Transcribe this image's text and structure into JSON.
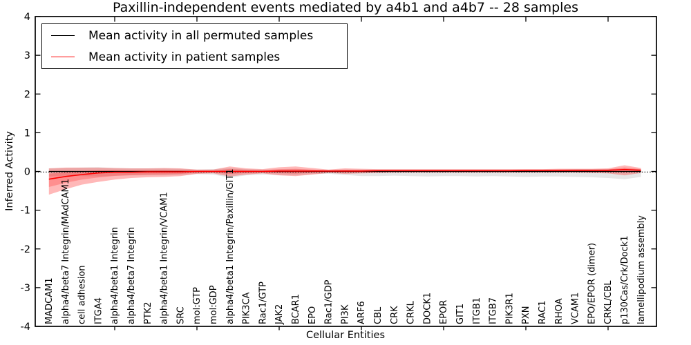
{
  "chart_data": {
    "type": "line",
    "title": "Paxillin-independent events mediated by a4b1 and a4b7 -- 28 samples",
    "xlabel": "Cellular Entities",
    "ylabel": "Inferred Activity",
    "ylim": [
      -4,
      4
    ],
    "yticks": [
      4,
      3,
      2,
      1,
      0,
      -1,
      -2,
      -3,
      -4
    ],
    "x_major_tick_positions": [
      5,
      10,
      15,
      20,
      25,
      30,
      35
    ],
    "grid": false,
    "legend_position": "upper left",
    "zero_reference_line": {
      "value": 0,
      "style": "dotted",
      "color": "#000000"
    },
    "entities": [
      "MADCAM1",
      "alpha4/beta7 Integrin/MAdCAM1",
      "cell adhesion",
      "ITGA4",
      "alpha4/beta1 Integrin",
      "alpha4/beta7 Integrin",
      "PTK2",
      "alpha4/beta1 Integrin/VCAM1",
      "SRC",
      "mol:GTP",
      "mol:GDP",
      "alpha4/beta1 Integrin/Paxillin/GIT1",
      "PIK3CA",
      "Rac1/GTP",
      "JAK2",
      "BCAR1",
      "EPO",
      "Rac1/GDP",
      "PI3K",
      "ARF6",
      "CBL",
      "CRK",
      "CRKL",
      "DOCK1",
      "EPOR",
      "GIT1",
      "ITGB1",
      "ITGB7",
      "PIK3R1",
      "PXN",
      "RAC1",
      "RHOA",
      "VCAM1",
      "EPO/EPOR (dimer)",
      "CRKL/CBL",
      "p130Cas/Crk/Dock1",
      "lamellipodium assembly"
    ],
    "series": [
      {
        "name": "Mean activity in all permuted samples",
        "color": "#000000",
        "values": [
          0,
          0,
          0,
          0,
          0,
          0,
          0,
          0,
          0,
          0,
          0,
          0,
          0,
          0,
          0,
          0,
          0,
          0,
          0,
          0,
          0,
          0,
          0,
          0,
          0,
          0,
          0,
          0,
          0,
          0,
          0,
          0,
          0,
          0,
          0,
          0,
          0
        ],
        "band_low": [
          -0.13,
          -0.11,
          -0.12,
          -0.13,
          -0.11,
          -0.1,
          -0.1,
          -0.1,
          -0.09,
          -0.07,
          -0.08,
          -0.16,
          -0.1,
          -0.08,
          -0.09,
          -0.1,
          -0.07,
          -0.06,
          -0.09,
          -0.12,
          -0.12,
          -0.11,
          -0.12,
          -0.13,
          -0.12,
          -0.12,
          -0.13,
          -0.12,
          -0.13,
          -0.14,
          -0.13,
          -0.13,
          -0.14,
          -0.15,
          -0.17,
          -0.2,
          -0.14
        ],
        "band_high": [
          0.08,
          0.09,
          0.1,
          0.11,
          0.09,
          0.08,
          0.08,
          0.08,
          0.07,
          0.05,
          0.06,
          0.09,
          0.06,
          0.05,
          0.05,
          0.06,
          0.04,
          0.04,
          0.05,
          0.05,
          0.05,
          0.05,
          0.05,
          0.05,
          0.05,
          0.05,
          0.05,
          0.05,
          0.05,
          0.05,
          0.05,
          0.05,
          0.06,
          0.06,
          0.06,
          0.07,
          0.06
        ],
        "band_color": "#c8c8c8",
        "band_opacity": 0.45
      },
      {
        "name": "Mean activity in patient samples",
        "color": "#ff0000",
        "values": [
          -0.2,
          -0.13,
          -0.08,
          -0.04,
          -0.02,
          -0.02,
          -0.01,
          -0.01,
          -0.01,
          0.0,
          0.0,
          0.0,
          0.0,
          0.0,
          0.01,
          0.01,
          0.01,
          0.01,
          0.01,
          0.01,
          0.02,
          0.02,
          0.02,
          0.02,
          0.02,
          0.02,
          0.02,
          0.02,
          0.02,
          0.03,
          0.03,
          0.03,
          0.03,
          0.03,
          0.03,
          0.05,
          0.03
        ],
        "band_low": [
          -0.6,
          -0.46,
          -0.34,
          -0.27,
          -0.21,
          -0.17,
          -0.15,
          -0.14,
          -0.12,
          -0.06,
          -0.05,
          -0.13,
          -0.08,
          -0.05,
          -0.1,
          -0.12,
          -0.08,
          -0.04,
          -0.06,
          -0.05,
          -0.04,
          -0.03,
          -0.03,
          -0.03,
          -0.03,
          -0.03,
          -0.03,
          -0.03,
          -0.03,
          -0.03,
          -0.03,
          -0.03,
          -0.03,
          -0.04,
          -0.05,
          -0.1,
          -0.04
        ],
        "band_high": [
          0.08,
          0.1,
          0.1,
          0.1,
          0.09,
          0.08,
          0.08,
          0.09,
          0.08,
          0.05,
          0.05,
          0.13,
          0.08,
          0.06,
          0.11,
          0.13,
          0.09,
          0.05,
          0.08,
          0.07,
          0.06,
          0.06,
          0.06,
          0.06,
          0.06,
          0.06,
          0.06,
          0.06,
          0.06,
          0.06,
          0.06,
          0.07,
          0.07,
          0.07,
          0.08,
          0.16,
          0.09
        ],
        "band_color": "#ff0000",
        "band_opacity": 0.28
      }
    ]
  }
}
